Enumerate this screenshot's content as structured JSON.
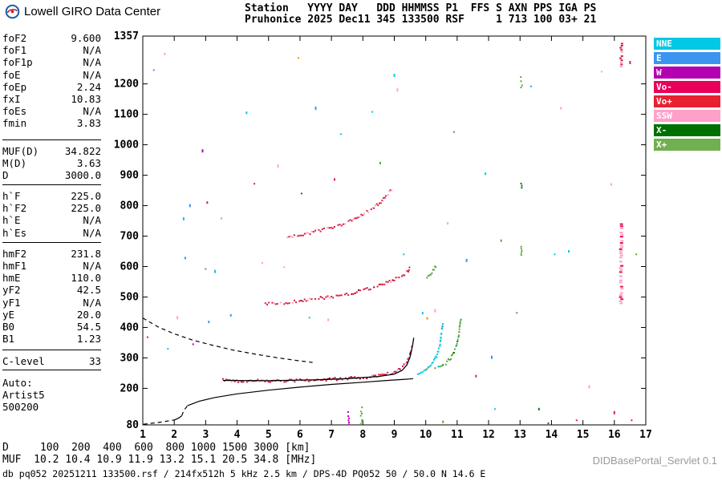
{
  "app": {
    "brand": "Lowell GIRO Data Center",
    "servlet": "DIDBasePortal_Servlet 0.1"
  },
  "header": {
    "line1": "Station   YYYY DAY   DDD HHMMSS P1  FFS S AXN PPS IGA PS",
    "line2": "Pruhonice 2025 Dec11 345 133500 RSF     1 713 100 03+ 21"
  },
  "params": {
    "groups": [
      {
        "rows": [
          [
            "foF2",
            "9.600"
          ],
          [
            "foF1",
            "N/A"
          ],
          [
            "foF1p",
            "N/A"
          ],
          [
            "foE",
            "N/A"
          ],
          [
            "foEp",
            "2.24"
          ],
          [
            "fxI",
            "10.83"
          ],
          [
            "foEs",
            "N/A"
          ],
          [
            "fmin",
            "3.83"
          ]
        ]
      },
      {
        "rows": [
          [
            "MUF(D)",
            "34.822"
          ],
          [
            "M(D)",
            "3.63"
          ],
          [
            "D",
            "3000.0"
          ]
        ]
      },
      {
        "rows": [
          [
            "h`F",
            "225.0"
          ],
          [
            "h`F2",
            "225.0"
          ],
          [
            "h`E",
            "N/A"
          ],
          [
            "h`Es",
            "N/A"
          ]
        ]
      },
      {
        "rows": [
          [
            "hmF2",
            "231.8"
          ],
          [
            "hmF1",
            "N/A"
          ],
          [
            "hmE",
            "110.0"
          ],
          [
            "yF2",
            "42.5"
          ],
          [
            "yF1",
            "N/A"
          ],
          [
            "yE",
            "20.0"
          ],
          [
            "B0",
            "54.5"
          ],
          [
            "B1",
            "1.23"
          ]
        ]
      },
      {
        "rows": [
          [
            "C-level",
            "33"
          ]
        ]
      },
      {
        "rows": [
          [
            "Auto:",
            ""
          ],
          [
            "Artist5",
            ""
          ],
          [
            "500200",
            ""
          ]
        ]
      }
    ]
  },
  "legend": {
    "items": [
      {
        "label": "NNE",
        "color": "#00c8e6"
      },
      {
        "label": "E",
        "color": "#3b95f0"
      },
      {
        "label": "W",
        "color": "#b300b3"
      },
      {
        "label": "Vo-",
        "color": "#e8005a"
      },
      {
        "label": "Vo+",
        "color": "#e82030"
      },
      {
        "label": "SSW",
        "color": "#ffa0c8"
      },
      {
        "label": "X-",
        "color": "#007000"
      },
      {
        "label": "X+",
        "color": "#70b050"
      }
    ]
  },
  "footer": {
    "distance_row": {
      "label": "D",
      "values": [
        "100",
        "200",
        "400",
        "600",
        "800",
        "1000",
        "1500",
        "3000"
      ],
      "unit": "[km]"
    },
    "muf_row": {
      "label": "MUF",
      "values": [
        "10.2",
        "10.4",
        "10.9",
        "11.9",
        "13.2",
        "15.1",
        "20.5",
        "34.8"
      ],
      "unit": "[MHz]"
    },
    "status": "db pq052 20251211 133500.rsf / 214fx512h 5 kHz 2.5 km / DPS-4D PQ052 50 / 50.0 N 14.6 E"
  },
  "chart_data": {
    "type": "scatter",
    "title": "Pruhonice ionogram 2025 Dec11 345 133500",
    "x_unit": "MHz",
    "y_unit": "km",
    "xlim": [
      1,
      17
    ],
    "ylim": [
      80,
      1357
    ],
    "grid": false,
    "x_ticks": [
      1,
      2,
      3,
      4,
      5,
      6,
      7,
      8,
      9,
      10,
      11,
      12,
      13,
      14,
      15,
      16,
      17
    ],
    "y_ticks": [
      80,
      200,
      300,
      400,
      500,
      600,
      700,
      800,
      900,
      1000,
      1100,
      1200,
      1357
    ],
    "noise_colors": [
      "#00c8e6",
      "#3b95f0",
      "#b300b3",
      "#d82040",
      "#ffa0c8",
      "#0a7a0a",
      "#57a639",
      "#ff8c00"
    ],
    "series": [
      {
        "name": "noise-speckle",
        "type": "points",
        "pts": [
          [
            1.35,
            1245,
            1
          ],
          [
            1.7,
            1298,
            4
          ],
          [
            2.3,
            757,
            0
          ],
          [
            2.5,
            800,
            1
          ],
          [
            2.35,
            628,
            1
          ],
          [
            3.0,
            592,
            6
          ],
          [
            3.3,
            584,
            0
          ],
          [
            3.05,
            810,
            3
          ],
          [
            3.5,
            758,
            4
          ],
          [
            2.9,
            980,
            2
          ],
          [
            5.95,
            1285,
            7
          ],
          [
            4.3,
            1105,
            0
          ],
          [
            4.55,
            872,
            3
          ],
          [
            5.3,
            930,
            4
          ],
          [
            6.05,
            840,
            5
          ],
          [
            6.5,
            1120,
            1
          ],
          [
            7.1,
            886,
            3
          ],
          [
            7.3,
            1035,
            0
          ],
          [
            8.3,
            1108,
            0
          ],
          [
            8.55,
            940,
            6
          ],
          [
            9.0,
            1228,
            0
          ],
          [
            9.1,
            1180,
            4
          ],
          [
            9.3,
            640,
            0
          ],
          [
            9.9,
            447,
            0
          ],
          [
            10.05,
            430,
            7
          ],
          [
            10.3,
            455,
            4
          ],
          [
            10.9,
            1042,
            6
          ],
          [
            11.3,
            620,
            1
          ],
          [
            11.6,
            240,
            3
          ],
          [
            12.1,
            302,
            1
          ],
          [
            12.4,
            685,
            6
          ],
          [
            12.9,
            448,
            6
          ],
          [
            13.35,
            1192,
            1
          ],
          [
            13.6,
            132,
            5
          ],
          [
            14.1,
            640,
            0
          ],
          [
            14.55,
            650,
            0
          ],
          [
            14.8,
            95,
            3
          ],
          [
            15.2,
            205,
            4
          ],
          [
            15.6,
            1240,
            4
          ],
          [
            16.0,
            120,
            3
          ],
          [
            16.55,
            95,
            3
          ],
          [
            16.5,
            1270,
            3
          ],
          [
            16.7,
            640,
            6
          ],
          [
            15.9,
            870,
            4
          ],
          [
            3.8,
            440,
            1
          ],
          [
            2.1,
            432,
            4
          ],
          [
            1.8,
            330,
            0
          ],
          [
            2.6,
            345,
            2
          ],
          [
            3.1,
            418,
            1
          ],
          [
            1.15,
            368,
            3
          ],
          [
            6.3,
            432,
            0
          ],
          [
            6.9,
            425,
            4
          ],
          [
            12.2,
            132,
            0
          ],
          [
            10.55,
            90,
            6
          ],
          [
            13.9,
            85,
            5
          ],
          [
            4.8,
            612,
            4
          ],
          [
            5.5,
            598,
            4
          ],
          [
            10.7,
            742,
            4
          ],
          [
            11.9,
            905,
            0
          ],
          [
            14.3,
            1120,
            4
          ]
        ]
      },
      {
        "name": "interference-16mhz-low",
        "type": "vstrip",
        "f": 16.22,
        "h0": 478,
        "h1": 742,
        "w": 4,
        "color": "#ffa0c8",
        "alt": [
          "#d82040",
          "#e8005a"
        ]
      },
      {
        "name": "interference-16mhz-high",
        "type": "vstrip",
        "f": 16.22,
        "h0": 1255,
        "h1": 1335,
        "w": 3,
        "color": "#d82040",
        "alt": [
          "#ffa0c8"
        ]
      },
      {
        "name": "interference-13mhz-a",
        "type": "vstrip",
        "f": 13.05,
        "h0": 638,
        "h1": 668,
        "w": 2,
        "color": "#57a639"
      },
      {
        "name": "interference-13mhz-b",
        "type": "vstrip",
        "f": 13.05,
        "h0": 852,
        "h1": 882,
        "w": 2,
        "color": "#0a7a0a"
      },
      {
        "name": "interference-13mhz-c",
        "type": "vstrip",
        "f": 13.05,
        "h0": 1185,
        "h1": 1225,
        "w": 2,
        "color": "#57a639"
      },
      {
        "name": "interference-7-5mhz",
        "type": "vstrip",
        "f": 7.55,
        "h0": 83,
        "h1": 132,
        "w": 2,
        "color": "#b300b3"
      },
      {
        "name": "interference-7-9mhz",
        "type": "vstrip",
        "f": 7.95,
        "h0": 83,
        "h1": 140,
        "w": 2,
        "color": "#57a639"
      },
      {
        "name": "f-trace-o-mode",
        "type": "dots",
        "color": "#d82040",
        "alt": [
          "#a00028",
          "#ffa0c8",
          "#e8005a"
        ],
        "anchors": [
          [
            3.55,
            227
          ],
          [
            4.2,
            224
          ],
          [
            5,
            224
          ],
          [
            6,
            226
          ],
          [
            7,
            230
          ],
          [
            7.8,
            234
          ],
          [
            8.4,
            240
          ],
          [
            8.9,
            249
          ],
          [
            9.15,
            260
          ],
          [
            9.35,
            278
          ],
          [
            9.5,
            308
          ],
          [
            9.58,
            345
          ]
        ]
      },
      {
        "name": "f-trace-x-mode-a",
        "type": "dots",
        "color": "#00c8e6",
        "alt": [
          "#57a639",
          "#3b95f0"
        ],
        "anchors": [
          [
            9.75,
            250
          ],
          [
            10.0,
            262
          ],
          [
            10.2,
            280
          ],
          [
            10.35,
            305
          ],
          [
            10.45,
            340
          ],
          [
            10.5,
            380
          ],
          [
            10.55,
            420
          ]
        ]
      },
      {
        "name": "f-trace-x-mode-b",
        "type": "dots",
        "color": "#57a639",
        "alt": [
          "#0a7a0a",
          "#00c8e6"
        ],
        "anchors": [
          [
            10.3,
            262
          ],
          [
            10.6,
            278
          ],
          [
            10.8,
            300
          ],
          [
            10.95,
            330
          ],
          [
            11.05,
            370
          ],
          [
            11.1,
            420
          ],
          [
            11.15,
            442
          ]
        ]
      },
      {
        "name": "second-hop-trace",
        "type": "dots",
        "color": "#d82040",
        "alt": [
          "#ffa0c8",
          "#a00028"
        ],
        "anchors": [
          [
            4.9,
            476
          ],
          [
            5.5,
            481
          ],
          [
            6.2,
            489
          ],
          [
            7,
            501
          ],
          [
            7.7,
            514
          ],
          [
            8.3,
            530
          ],
          [
            8.8,
            548
          ],
          [
            9.2,
            566
          ],
          [
            9.45,
            585
          ],
          [
            9.5,
            600
          ]
        ]
      },
      {
        "name": "third-hop-trace",
        "type": "dots",
        "color": "#d82040",
        "alt": [
          "#ffa0c8"
        ],
        "anchors": [
          [
            5.6,
            697
          ],
          [
            6.1,
            705
          ],
          [
            6.6,
            716
          ],
          [
            7.1,
            730
          ],
          [
            7.6,
            749
          ],
          [
            8.0,
            770
          ],
          [
            8.4,
            797
          ],
          [
            8.7,
            825
          ],
          [
            8.95,
            858
          ]
        ]
      },
      {
        "name": "x-second-hop-bits",
        "type": "dots",
        "color": "#57a639",
        "anchors": [
          [
            10.0,
            560
          ],
          [
            10.2,
            582
          ],
          [
            10.35,
            606
          ]
        ]
      },
      {
        "name": "profile-below-fmin",
        "type": "dash",
        "anchors": [
          [
            1.02,
            82
          ],
          [
            1.5,
            88
          ],
          [
            2.0,
            96
          ]
        ]
      },
      {
        "name": "profile-e-layer",
        "type": "line",
        "anchors": [
          [
            2.0,
            96
          ],
          [
            2.15,
            103
          ],
          [
            2.24,
            110
          ]
        ]
      },
      {
        "name": "profile-valley",
        "type": "dash",
        "anchors": [
          [
            2.24,
            110
          ],
          [
            2.3,
            126
          ],
          [
            2.42,
            143
          ]
        ]
      },
      {
        "name": "profile-f-layer",
        "type": "line",
        "anchors": [
          [
            2.42,
            143
          ],
          [
            2.8,
            158
          ],
          [
            3.3,
            170
          ],
          [
            4,
            182
          ],
          [
            5,
            194
          ],
          [
            6,
            204
          ],
          [
            7,
            213
          ],
          [
            8,
            220
          ],
          [
            8.8,
            226
          ],
          [
            9.4,
            230
          ],
          [
            9.6,
            231.8
          ]
        ]
      },
      {
        "name": "profile-topside",
        "type": "dash",
        "anchors": [
          [
            1.0,
            431
          ],
          [
            1.5,
            401
          ],
          [
            2.0,
            379
          ],
          [
            2.6,
            358
          ],
          [
            3.2,
            342
          ],
          [
            3.9,
            325
          ],
          [
            4.6,
            312
          ],
          [
            5.3,
            300
          ],
          [
            6.0,
            290
          ],
          [
            6.4,
            285
          ]
        ]
      },
      {
        "name": "scaled-o-trace",
        "type": "line",
        "w": 1.3,
        "anchors": [
          [
            3.55,
            226
          ],
          [
            5,
            225
          ],
          [
            6.5,
            228
          ],
          [
            7.5,
            232
          ],
          [
            8.5,
            239
          ],
          [
            9.0,
            247
          ],
          [
            9.25,
            259
          ],
          [
            9.4,
            277
          ],
          [
            9.5,
            303
          ],
          [
            9.58,
            340
          ],
          [
            9.62,
            366
          ]
        ]
      }
    ]
  }
}
